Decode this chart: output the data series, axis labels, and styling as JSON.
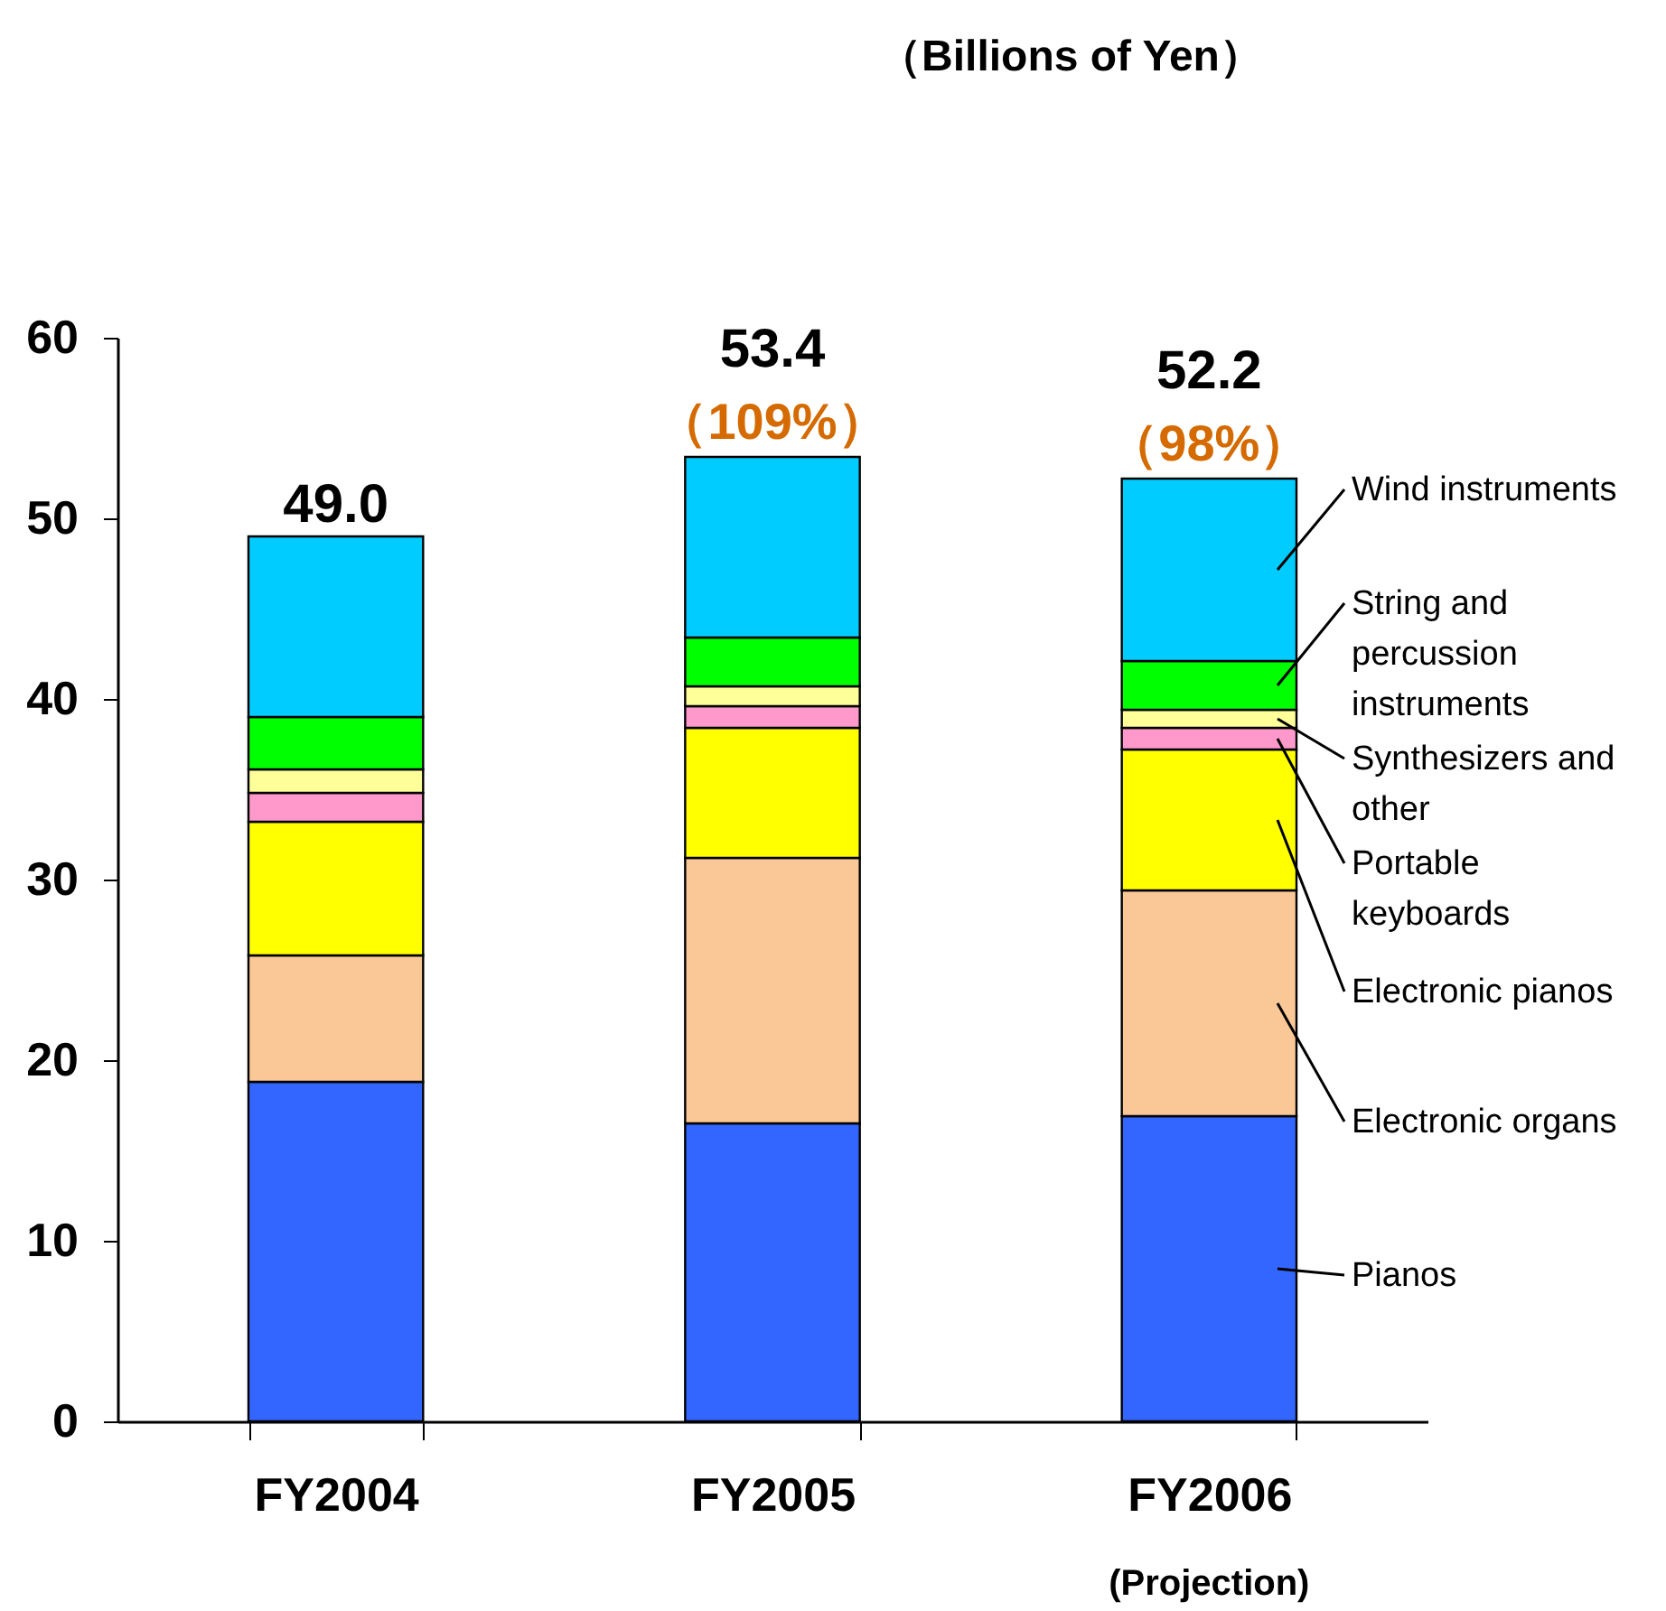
{
  "chart_data": {
    "type": "bar",
    "title": "（Billions of Yen）",
    "stacked": true,
    "categories": [
      "FY2004",
      "FY2005",
      "FY2006"
    ],
    "series": [
      {
        "name": "Pianos",
        "color": "#3366ff",
        "values": [
          18.8,
          16.5,
          16.9
        ]
      },
      {
        "name": "Electronic organs",
        "color": "#f9c896",
        "values": [
          7.0,
          14.7,
          12.5
        ]
      },
      {
        "name": "Electronic pianos",
        "color": "#ffff00",
        "values": [
          7.4,
          7.2,
          7.8
        ]
      },
      {
        "name": "Portable\nkeyboards",
        "color": "#ff99cc",
        "values": [
          1.6,
          1.2,
          1.2
        ]
      },
      {
        "name": "Synthesizers and\nother",
        "color": "#ffff99",
        "values": [
          1.3,
          1.1,
          1.0
        ]
      },
      {
        "name": "String and\npercussion\ninstruments",
        "color": "#00ff00",
        "values": [
          2.9,
          2.7,
          2.7
        ]
      },
      {
        "name": "Wind instruments",
        "color": "#00ccff",
        "values": [
          10.0,
          10.0,
          10.1
        ]
      }
    ],
    "totals": [
      "49.0",
      "53.4",
      "52.2"
    ],
    "annotations": [
      {
        "text": "（109%）",
        "x": "FY2005",
        "y": 53.4
      },
      {
        "text": "（98%）",
        "x": "FY2006",
        "y": 52.2
      },
      "(Projection)"
    ],
    "ylim": [
      0,
      60
    ],
    "yticks": [
      0,
      10,
      20,
      30,
      40,
      50,
      60
    ],
    "grid": false,
    "legend": "right"
  }
}
